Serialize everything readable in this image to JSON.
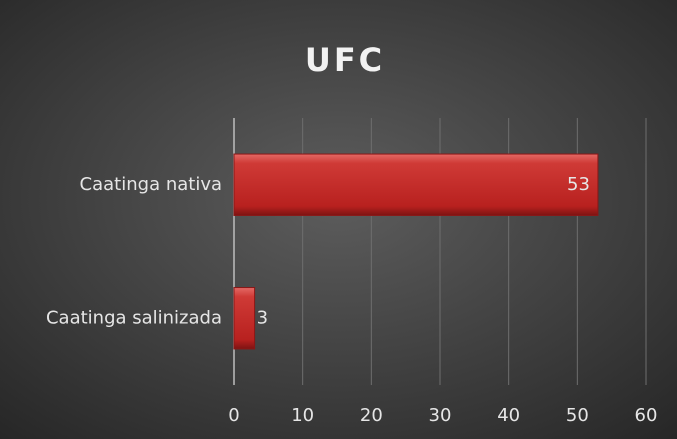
{
  "chart_data": {
    "type": "bar",
    "orientation": "horizontal",
    "title": "UFC",
    "categories": [
      "Caatinga nativa",
      "Caatinga salinizada"
    ],
    "values": [
      53,
      3
    ],
    "color": "#c8302e",
    "xlim": [
      0,
      60
    ],
    "xticks": [
      0,
      10,
      20,
      30,
      40,
      50,
      60
    ],
    "grid": true
  }
}
